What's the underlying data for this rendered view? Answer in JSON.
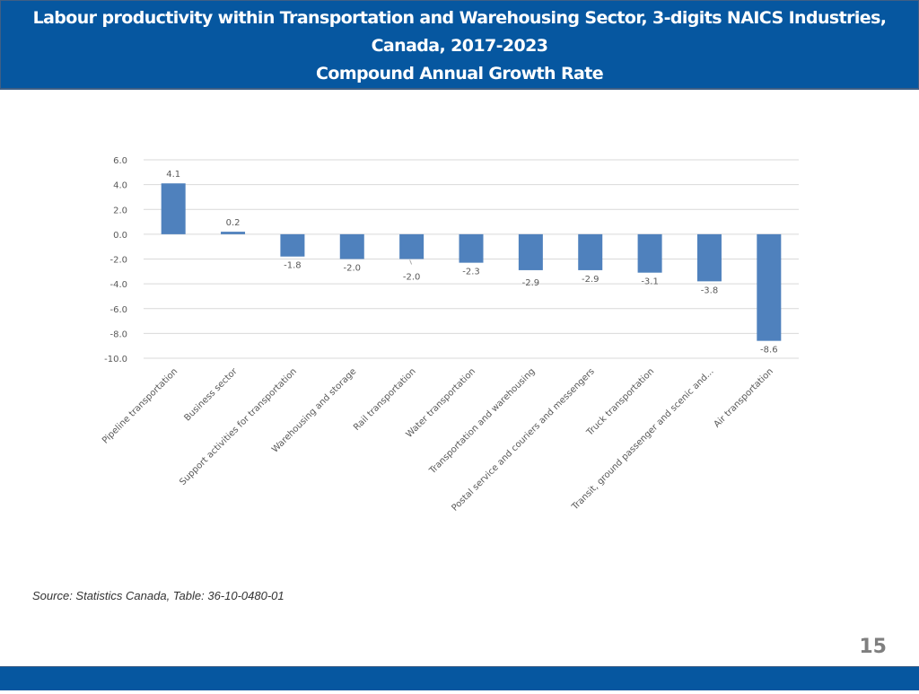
{
  "header": {
    "title_line1": "Labour productivity within Transportation and Warehousing Sector, 3-digits NAICS Industries,",
    "title_line2": "Canada, 2017-2023",
    "title_line3": "Compound Annual Growth Rate"
  },
  "source": "Source: Statistics Canada, Table: 36-10-0480-01",
  "page_number": "15",
  "colors": {
    "header_bg": "#0657a0",
    "bar": "#4f81bd",
    "grid": "#d9d9d9",
    "label": "#595959"
  },
  "chart_data": {
    "type": "bar",
    "title": "Labour productivity within Transportation and Warehousing Sector, 3-digits NAICS Industries, Canada, 2017-2023 — Compound Annual Growth Rate",
    "xlabel": "",
    "ylabel": "",
    "ylim": [
      -10.0,
      6.0
    ],
    "yticks": [
      6.0,
      4.0,
      2.0,
      0.0,
      -2.0,
      -4.0,
      -6.0,
      -8.0,
      -10.0
    ],
    "ytick_labels": [
      "6.0",
      "4.0",
      "2.0",
      "0.0",
      "-2.0",
      "-4.0",
      "-6.0",
      "-8.0",
      "-10.0"
    ],
    "grid": true,
    "legend": "none",
    "categories": [
      "Pipeline transportation",
      "Business sector",
      "Support activities for transportation",
      "Warehousing and storage",
      "Rail transportation",
      "Water transportation",
      "Transportation and warehousing",
      "Postal service and couriers and messengers",
      "Truck transportation",
      "Transit, ground passenger and scenic and...",
      "Air transportation"
    ],
    "values": [
      4.1,
      0.2,
      -1.8,
      -2.0,
      -2.0,
      -2.3,
      -2.9,
      -2.9,
      -3.1,
      -3.8,
      -8.6
    ],
    "data_labels": [
      "4.1",
      "0.2",
      "-1.8",
      "-2.0",
      "-2.0",
      "-2.3",
      "-2.9",
      "-2.9",
      "-3.1",
      "-3.8",
      "-8.6"
    ]
  }
}
